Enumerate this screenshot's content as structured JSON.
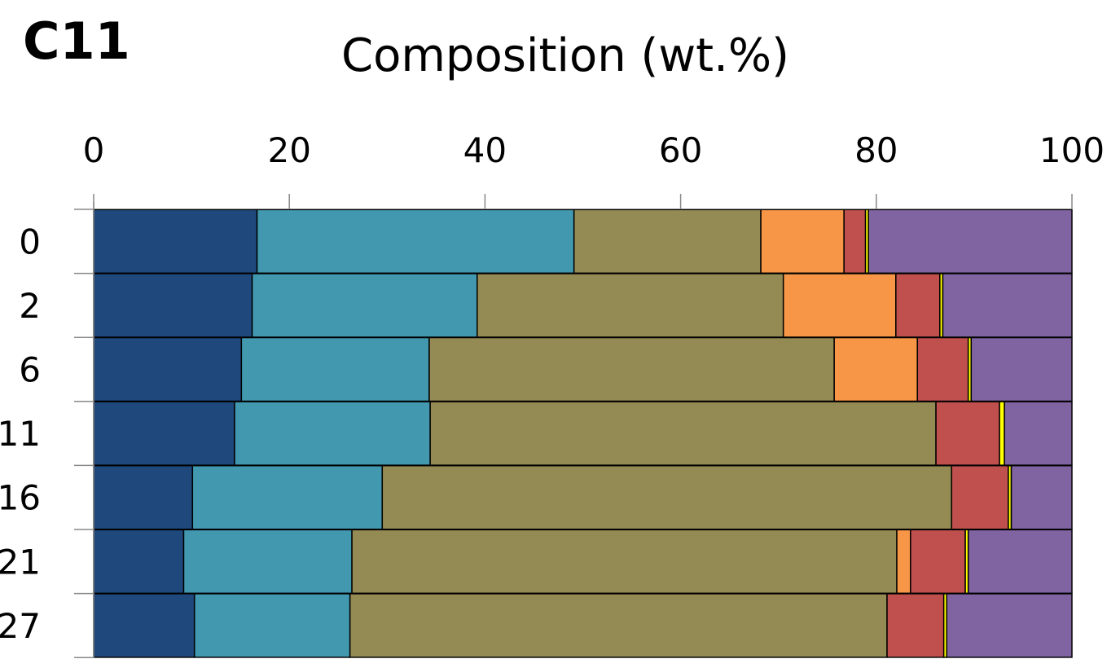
{
  "chart_data": {
    "type": "bar",
    "orientation": "horizontal",
    "stacked": true,
    "panel_label": "C11",
    "title": "Composition (wt.%)",
    "xlim": [
      0,
      100
    ],
    "x_ticks": [
      "0",
      "20",
      "40",
      "60",
      "80",
      "100"
    ],
    "categories": [
      "0",
      "2",
      "6",
      "11",
      "16",
      "21",
      "27"
    ],
    "grid": false,
    "legend": "none",
    "series": [
      {
        "color": "#1f497d",
        "values": [
          16.7,
          16.2,
          15.1,
          14.4,
          10.1,
          9.2,
          10.3
        ]
      },
      {
        "color": "#4198af",
        "values": [
          32.4,
          23.0,
          19.2,
          20.0,
          19.4,
          17.2,
          15.9
        ]
      },
      {
        "color": "#948a54",
        "values": [
          19.1,
          31.3,
          41.4,
          51.7,
          58.2,
          55.7,
          54.9
        ]
      },
      {
        "color": "#f79646",
        "values": [
          8.5,
          11.5,
          8.5,
          0,
          0,
          1.4,
          0
        ]
      },
      {
        "color": "#c0504d",
        "values": [
          2.2,
          4.5,
          5.2,
          6.5,
          5.8,
          5.6,
          5.8
        ]
      },
      {
        "color": "#ffff00",
        "values": [
          0.3,
          0.3,
          0.3,
          0.5,
          0.3,
          0.3,
          0.3
        ]
      },
      {
        "color": "#8064a2",
        "values": [
          20.8,
          13.2,
          10.3,
          6.9,
          6.2,
          10.6,
          12.8
        ]
      }
    ]
  }
}
